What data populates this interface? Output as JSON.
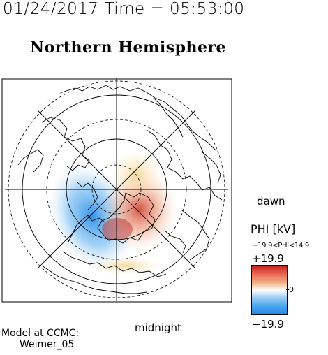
{
  "header": {
    "datetime": "01/24/2017 Time = 05:53:00",
    "title": "Northern Hemisphere"
  },
  "labels": {
    "dawn": "dawn",
    "midnight": "midnight",
    "model_line1": "Model at CCMC:",
    "model_line2": "Weimer_05"
  },
  "colorbar": {
    "title": "PHI [kV]",
    "range_text": "−19.9<PHI<14.9",
    "max_label": "+19.9",
    "zero_label": "0",
    "min_label": "−19.9",
    "colors": {
      "positive": "#c62020",
      "neutral": "#ffffff",
      "negative": "#1f8be6"
    }
  },
  "map": {
    "projection": "polar stereographic, north pole centered",
    "background": "#ffffff",
    "coastline_color": "#000000",
    "grid_color": "#000000"
  }
}
